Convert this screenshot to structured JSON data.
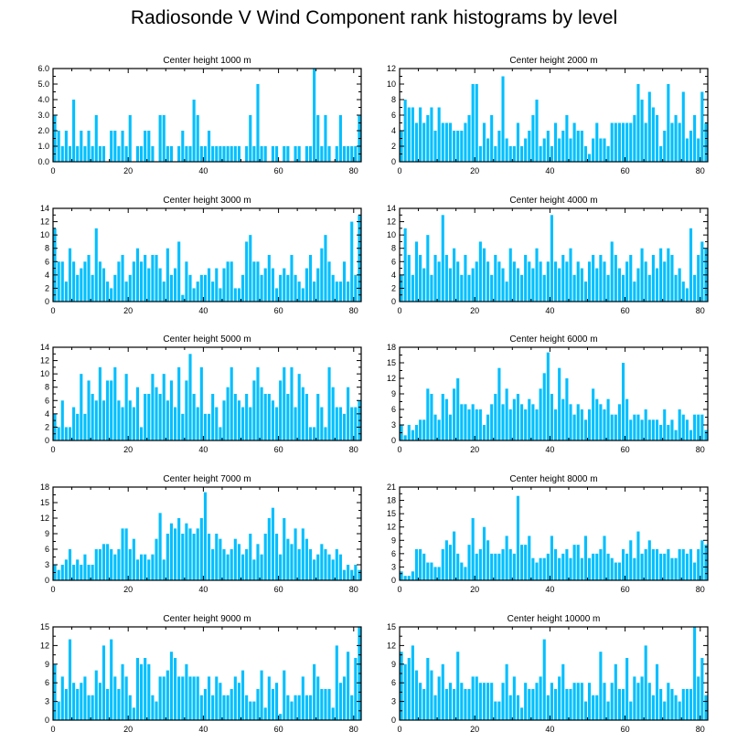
{
  "title": "Radiosonde V Wind Component rank histograms by level",
  "colors": {
    "bar": "#00bfff",
    "frame": "#000000"
  },
  "chart_data": [
    {
      "type": "bar",
      "title": "Center height 1000 m",
      "xlim": [
        0,
        82
      ],
      "ylim": [
        0,
        6
      ],
      "yticks": [
        0,
        1,
        2,
        3,
        4,
        5,
        6
      ],
      "ytick_labels": [
        "0.0",
        "1.0",
        "2.0",
        "3.0",
        "4.0",
        "5.0",
        "6.0"
      ],
      "xticks": [
        0,
        20,
        40,
        60,
        80
      ],
      "xtick_labels": [
        "0",
        "20",
        "40",
        "60",
        "80"
      ],
      "values": [
        3,
        2,
        1,
        2,
        1,
        4,
        1,
        2,
        1,
        2,
        1,
        3,
        1,
        1,
        0,
        2,
        2,
        1,
        2,
        1,
        3,
        0,
        1,
        1,
        2,
        2,
        1,
        0,
        3,
        3,
        1,
        1,
        0,
        1,
        2,
        1,
        1,
        4,
        3,
        1,
        1,
        2,
        1,
        1,
        1,
        1,
        1,
        1,
        1,
        1,
        0,
        1,
        3,
        1,
        5,
        1,
        1,
        0,
        1,
        1,
        0,
        1,
        1,
        0,
        1,
        1,
        0,
        1,
        1,
        6,
        3,
        1,
        3,
        1,
        0,
        1,
        3,
        1,
        1,
        1,
        1,
        3
      ]
    },
    {
      "type": "bar",
      "title": "Center height 2000 m",
      "xlim": [
        0,
        82
      ],
      "ylim": [
        0,
        12
      ],
      "yticks": [
        0,
        2,
        4,
        6,
        8,
        10,
        12
      ],
      "ytick_labels": [
        "0",
        "2",
        "4",
        "6",
        "8",
        "10",
        "12"
      ],
      "xticks": [
        0,
        20,
        40,
        60,
        80
      ],
      "xtick_labels": [
        "0",
        "20",
        "40",
        "60",
        "80"
      ],
      "values": [
        4,
        8,
        7,
        7,
        5,
        7,
        5,
        6,
        7,
        4,
        7,
        5,
        5,
        5,
        4,
        4,
        4,
        5,
        6,
        10,
        10,
        2,
        5,
        3,
        6,
        2,
        4,
        11,
        3,
        2,
        2,
        5,
        2,
        3,
        4,
        6,
        8,
        2,
        3,
        4,
        2,
        5,
        3,
        4,
        6,
        3,
        5,
        4,
        4,
        2,
        1,
        3,
        5,
        3,
        3,
        2,
        5,
        5,
        5,
        5,
        5,
        5,
        6,
        10,
        8,
        5,
        9,
        7,
        6,
        2,
        4,
        10,
        5,
        6,
        5,
        9,
        3,
        4,
        6,
        3,
        9,
        5
      ]
    },
    {
      "type": "bar",
      "title": "Center height 3000 m",
      "xlim": [
        0,
        82
      ],
      "ylim": [
        0,
        14
      ],
      "yticks": [
        0,
        2,
        4,
        6,
        8,
        10,
        12,
        14
      ],
      "ytick_labels": [
        "0",
        "2",
        "4",
        "6",
        "8",
        "10",
        "12",
        "14"
      ],
      "xticks": [
        0,
        20,
        40,
        60,
        80
      ],
      "xtick_labels": [
        "0",
        "20",
        "40",
        "60",
        "80"
      ],
      "values": [
        11,
        6,
        6,
        3,
        8,
        6,
        4,
        5,
        6,
        7,
        4,
        11,
        6,
        5,
        3,
        2,
        4,
        6,
        7,
        3,
        4,
        6,
        8,
        6,
        7,
        5,
        7,
        7,
        5,
        3,
        8,
        4,
        5,
        9,
        1,
        6,
        4,
        2,
        3,
        4,
        4,
        5,
        3,
        5,
        2,
        5,
        6,
        6,
        2,
        2,
        4,
        9,
        10,
        6,
        6,
        4,
        5,
        7,
        5,
        2,
        4,
        5,
        4,
        7,
        4,
        3,
        2,
        5,
        7,
        3,
        5,
        8,
        10,
        6,
        4,
        3,
        3,
        6,
        3,
        12,
        4,
        13
      ]
    },
    {
      "type": "bar",
      "title": "Center height 4000 m",
      "xlim": [
        0,
        82
      ],
      "ylim": [
        0,
        14
      ],
      "yticks": [
        0,
        2,
        4,
        6,
        8,
        10,
        12,
        14
      ],
      "ytick_labels": [
        "0",
        "2",
        "4",
        "6",
        "8",
        "10",
        "12",
        "14"
      ],
      "xticks": [
        0,
        20,
        40,
        60,
        80
      ],
      "xtick_labels": [
        "0",
        "20",
        "40",
        "60",
        "80"
      ],
      "values": [
        4,
        11,
        7,
        4,
        9,
        7,
        5,
        10,
        4,
        7,
        6,
        13,
        7,
        5,
        8,
        6,
        4,
        7,
        4,
        5,
        6,
        9,
        8,
        6,
        4,
        7,
        6,
        5,
        3,
        8,
        6,
        5,
        4,
        7,
        6,
        5,
        8,
        6,
        4,
        6,
        13,
        6,
        5,
        7,
        6,
        8,
        4,
        6,
        5,
        3,
        6,
        7,
        5,
        7,
        6,
        4,
        9,
        7,
        5,
        4,
        6,
        7,
        3,
        5,
        8,
        6,
        4,
        7,
        5,
        8,
        6,
        8,
        7,
        4,
        5,
        3,
        2,
        11,
        4,
        7,
        9,
        8
      ]
    },
    {
      "type": "bar",
      "title": "Center height 5000 m",
      "xlim": [
        0,
        82
      ],
      "ylim": [
        0,
        14
      ],
      "yticks": [
        0,
        2,
        4,
        6,
        8,
        10,
        12,
        14
      ],
      "ytick_labels": [
        "0",
        "2",
        "4",
        "6",
        "8",
        "10",
        "12",
        "14"
      ],
      "xticks": [
        0,
        20,
        40,
        60,
        80
      ],
      "xtick_labels": [
        "0",
        "20",
        "40",
        "60",
        "80"
      ],
      "values": [
        4,
        2,
        6,
        2,
        2,
        5,
        4,
        10,
        4,
        9,
        7,
        6,
        11,
        6,
        9,
        9,
        11,
        6,
        5,
        10,
        6,
        5,
        8,
        2,
        7,
        7,
        10,
        8,
        7,
        10,
        6,
        9,
        5,
        11,
        4,
        9,
        13,
        7,
        5,
        11,
        4,
        4,
        7,
        5,
        2,
        6,
        8,
        11,
        7,
        6,
        5,
        7,
        5,
        9,
        11,
        8,
        7,
        7,
        6,
        5,
        9,
        11,
        7,
        11,
        5,
        10,
        8,
        7,
        2,
        2,
        7,
        5,
        2,
        11,
        8,
        5,
        5,
        4,
        8,
        5,
        5,
        6
      ]
    },
    {
      "type": "bar",
      "title": "Center height 6000 m",
      "xlim": [
        0,
        82
      ],
      "ylim": [
        0,
        18
      ],
      "yticks": [
        0,
        3,
        6,
        9,
        12,
        15,
        18
      ],
      "ytick_labels": [
        "0",
        "3",
        "6",
        "9",
        "12",
        "15",
        "18"
      ],
      "xticks": [
        0,
        20,
        40,
        60,
        80
      ],
      "xtick_labels": [
        "0",
        "20",
        "40",
        "60",
        "80"
      ],
      "values": [
        3,
        1,
        3,
        2,
        3,
        4,
        4,
        10,
        9,
        5,
        4,
        9,
        8,
        5,
        10,
        12,
        7,
        7,
        6,
        7,
        6,
        6,
        3,
        5,
        7,
        9,
        14,
        7,
        10,
        6,
        8,
        9,
        7,
        6,
        8,
        7,
        6,
        10,
        13,
        17,
        9,
        6,
        14,
        8,
        12,
        7,
        5,
        7,
        6,
        4,
        6,
        10,
        8,
        7,
        6,
        8,
        5,
        5,
        7,
        15,
        8,
        4,
        5,
        5,
        4,
        6,
        4,
        4,
        4,
        3,
        6,
        3,
        4,
        2,
        6,
        5,
        4,
        2,
        5,
        5,
        5,
        2
      ]
    },
    {
      "type": "bar",
      "title": "Center height 7000 m",
      "xlim": [
        0,
        82
      ],
      "ylim": [
        0,
        18
      ],
      "yticks": [
        0,
        3,
        6,
        9,
        12,
        15,
        18
      ],
      "ytick_labels": [
        "0",
        "3",
        "6",
        "9",
        "12",
        "15",
        "18"
      ],
      "xticks": [
        0,
        20,
        40,
        60,
        80
      ],
      "xtick_labels": [
        "0",
        "20",
        "40",
        "60",
        "80"
      ],
      "values": [
        3,
        2,
        3,
        4,
        6,
        3,
        4,
        3,
        5,
        3,
        3,
        6,
        6,
        7,
        7,
        6,
        5,
        6,
        10,
        10,
        6,
        8,
        4,
        5,
        5,
        4,
        5,
        8,
        13,
        4,
        9,
        11,
        10,
        12,
        9,
        11,
        10,
        9,
        10,
        12,
        17,
        9,
        6,
        9,
        8,
        6,
        5,
        6,
        8,
        7,
        5,
        6,
        9,
        4,
        7,
        5,
        9,
        12,
        14,
        9,
        5,
        12,
        8,
        7,
        10,
        6,
        10,
        8,
        6,
        4,
        5,
        7,
        6,
        5,
        4,
        6,
        5,
        2,
        3,
        2,
        3,
        2
      ]
    },
    {
      "type": "bar",
      "title": "Center height 8000 m",
      "xlim": [
        0,
        82
      ],
      "ylim": [
        0,
        21
      ],
      "yticks": [
        0,
        3,
        6,
        9,
        12,
        15,
        18,
        21
      ],
      "ytick_labels": [
        "0",
        "3",
        "6",
        "9",
        "12",
        "15",
        "18",
        "21"
      ],
      "xticks": [
        0,
        20,
        40,
        60,
        80
      ],
      "xtick_labels": [
        "0",
        "20",
        "40",
        "60",
        "80"
      ],
      "values": [
        2,
        1,
        1,
        2,
        7,
        7,
        6,
        4,
        4,
        3,
        3,
        7,
        9,
        8,
        11,
        6,
        4,
        3,
        8,
        14,
        6,
        7,
        12,
        9,
        6,
        6,
        6,
        7,
        10,
        7,
        6,
        19,
        8,
        8,
        10,
        5,
        4,
        5,
        5,
        6,
        10,
        7,
        5,
        6,
        7,
        5,
        8,
        8,
        5,
        10,
        5,
        6,
        6,
        7,
        10,
        6,
        5,
        4,
        4,
        7,
        6,
        9,
        5,
        11,
        6,
        7,
        9,
        7,
        7,
        6,
        6,
        7,
        5,
        5,
        7,
        7,
        6,
        7,
        4,
        7,
        9,
        8
      ]
    },
    {
      "type": "bar",
      "title": "Center height 9000 m",
      "xlim": [
        0,
        82
      ],
      "ylim": [
        0,
        15
      ],
      "yticks": [
        0,
        3,
        6,
        9,
        12,
        15
      ],
      "ytick_labels": [
        "0",
        "3",
        "6",
        "9",
        "12",
        "15"
      ],
      "xticks": [
        0,
        20,
        40,
        60,
        80
      ],
      "xtick_labels": [
        "0",
        "20",
        "40",
        "60",
        "80"
      ],
      "values": [
        9,
        3,
        7,
        5,
        13,
        6,
        5,
        6,
        7,
        4,
        4,
        8,
        6,
        12,
        5,
        13,
        7,
        5,
        9,
        7,
        4,
        2,
        10,
        9,
        10,
        9,
        4,
        3,
        7,
        7,
        8,
        11,
        10,
        7,
        7,
        9,
        7,
        7,
        7,
        4,
        5,
        7,
        4,
        7,
        6,
        4,
        4,
        5,
        7,
        6,
        8,
        4,
        3,
        3,
        5,
        8,
        2,
        7,
        5,
        6,
        1,
        8,
        4,
        3,
        4,
        4,
        7,
        4,
        4,
        9,
        7,
        5,
        5,
        5,
        2,
        12,
        6,
        7,
        11,
        4,
        10,
        15
      ]
    },
    {
      "type": "bar",
      "title": "Center height 10000 m",
      "xlim": [
        0,
        82
      ],
      "ylim": [
        0,
        15
      ],
      "yticks": [
        0,
        3,
        6,
        9,
        12,
        15
      ],
      "ytick_labels": [
        "0",
        "3",
        "6",
        "9",
        "12",
        "15"
      ],
      "xticks": [
        0,
        20,
        40,
        60,
        80
      ],
      "xtick_labels": [
        "0",
        "20",
        "40",
        "60",
        "80"
      ],
      "values": [
        11,
        9,
        10,
        12,
        8,
        6,
        5,
        10,
        8,
        4,
        7,
        9,
        5,
        6,
        5,
        11,
        6,
        5,
        5,
        7,
        7,
        6,
        6,
        6,
        6,
        3,
        3,
        6,
        9,
        4,
        7,
        4,
        2,
        6,
        5,
        5,
        6,
        7,
        13,
        4,
        6,
        5,
        7,
        9,
        5,
        5,
        6,
        6,
        6,
        3,
        6,
        4,
        4,
        11,
        6,
        3,
        6,
        9,
        5,
        5,
        10,
        3,
        7,
        6,
        7,
        12,
        6,
        4,
        9,
        5,
        3,
        6,
        5,
        4,
        3,
        5,
        5,
        5,
        15,
        7,
        10,
        4
      ]
    }
  ]
}
